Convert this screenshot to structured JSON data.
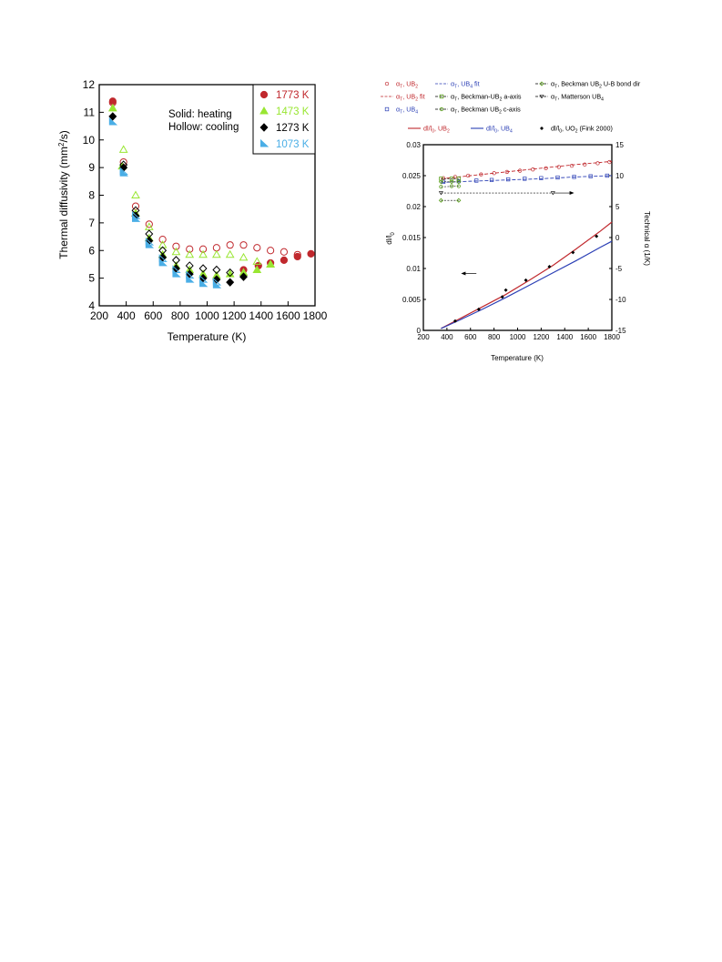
{
  "chart_data": [
    {
      "type": "scatter",
      "title": "",
      "xlabel": "Temperature (K)",
      "ylabel": "Thermal diffusivity (mm",
      "ylabel_sup": "2",
      "ylabel_end": "/s)",
      "xlim": [
        200,
        1800
      ],
      "ylim": [
        4,
        12
      ],
      "xticks": [
        "200",
        "400",
        "600",
        "800",
        "1000",
        "1200",
        "1400",
        "1600",
        "1800"
      ],
      "yticks": [
        "4",
        "5",
        "6",
        "7",
        "8",
        "9",
        "10",
        "11",
        "12"
      ],
      "annotation": [
        "Solid: heating",
        "Hollow: cooling"
      ],
      "legend_position": "top-right",
      "series": [
        {
          "name": "1773 K",
          "color": "#c0282d",
          "marker": "circle",
          "heating": [
            [
              300,
              11.4
            ],
            [
              1270,
              5.3
            ],
            [
              1380,
              5.45
            ],
            [
              1470,
              5.55
            ],
            [
              1570,
              5.65
            ],
            [
              1670,
              5.78
            ],
            [
              1770,
              5.88
            ]
          ],
          "cooling": [
            [
              300,
              11.35
            ],
            [
              380,
              9.2
            ],
            [
              470,
              7.6
            ],
            [
              570,
              6.95
            ],
            [
              670,
              6.4
            ],
            [
              770,
              6.15
            ],
            [
              870,
              6.05
            ],
            [
              970,
              6.05
            ],
            [
              1070,
              6.1
            ],
            [
              1170,
              6.2
            ],
            [
              1270,
              6.2
            ],
            [
              1370,
              6.1
            ],
            [
              1470,
              6.0
            ],
            [
              1570,
              5.95
            ],
            [
              1670,
              5.85
            ]
          ]
        },
        {
          "name": "1473 K",
          "color": "#99e632",
          "marker": "triangle",
          "heating": [
            [
              300,
              11.15
            ],
            [
              370,
              9.05
            ],
            [
              470,
              7.35
            ],
            [
              570,
              6.45
            ],
            [
              670,
              5.85
            ],
            [
              770,
              5.45
            ],
            [
              870,
              5.3
            ],
            [
              970,
              5.15
            ],
            [
              1070,
              5.1
            ],
            [
              1170,
              5.15
            ],
            [
              1270,
              5.2
            ],
            [
              1370,
              5.3
            ],
            [
              1470,
              5.5
            ]
          ],
          "cooling": [
            [
              380,
              9.65
            ],
            [
              470,
              8.0
            ],
            [
              570,
              6.85
            ],
            [
              670,
              6.2
            ],
            [
              770,
              5.95
            ],
            [
              870,
              5.85
            ],
            [
              970,
              5.85
            ],
            [
              1070,
              5.85
            ],
            [
              1170,
              5.85
            ],
            [
              1270,
              5.75
            ],
            [
              1370,
              5.6
            ],
            [
              1470,
              5.5
            ]
          ]
        },
        {
          "name": "1273 K",
          "color": "#000000",
          "marker": "diamond",
          "heating": [
            [
              300,
              10.85
            ],
            [
              380,
              9.0
            ],
            [
              470,
              7.25
            ],
            [
              570,
              6.35
            ],
            [
              670,
              5.75
            ],
            [
              770,
              5.35
            ],
            [
              870,
              5.15
            ],
            [
              970,
              5.0
            ],
            [
              1070,
              4.95
            ],
            [
              1170,
              4.85
            ],
            [
              1270,
              5.05
            ]
          ],
          "cooling": [
            [
              380,
              9.1
            ],
            [
              470,
              7.45
            ],
            [
              570,
              6.6
            ],
            [
              670,
              6.0
            ],
            [
              770,
              5.65
            ],
            [
              870,
              5.45
            ],
            [
              970,
              5.35
            ],
            [
              1070,
              5.3
            ],
            [
              1170,
              5.2
            ]
          ]
        },
        {
          "name": "1073 K",
          "color": "#4aaee6",
          "marker": "half-triangle",
          "heating": [
            [
              300,
              10.65
            ],
            [
              380,
              8.8
            ],
            [
              470,
              7.15
            ],
            [
              570,
              6.2
            ],
            [
              670,
              5.55
            ],
            [
              770,
              5.15
            ],
            [
              870,
              4.95
            ],
            [
              970,
              4.8
            ],
            [
              1070,
              4.75
            ]
          ],
          "cooling": [
            [
              380,
              8.85
            ],
            [
              470,
              7.25
            ],
            [
              570,
              6.3
            ],
            [
              670,
              5.7
            ],
            [
              770,
              5.3
            ],
            [
              870,
              5.1
            ],
            [
              970,
              4.95
            ],
            [
              1070,
              4.85
            ]
          ]
        }
      ]
    },
    {
      "type": "line",
      "title": "",
      "xlabel": "Temperature (K)",
      "ylabel": "dl/l",
      "ylabel_sub": "0",
      "y2label": "Technical α (1/K)",
      "xlim": [
        200,
        1800
      ],
      "ylim": [
        0,
        0.03
      ],
      "y2lim": [
        -15,
        15
      ],
      "xticks": [
        "200",
        "400",
        "600",
        "800",
        "1000",
        "1200",
        "1400",
        "1600",
        "1800"
      ],
      "yticks": [
        "0",
        "0.005",
        "0.01",
        "0.015",
        "0.02",
        "0.025",
        "0.03"
      ],
      "y2ticks": [
        "-15",
        "-10",
        "-5",
        "0",
        "5",
        "10",
        "15"
      ],
      "legend_position": "top",
      "legend": [
        {
          "label": "α",
          "sub": "T",
          "rest": ", UB",
          "sub2": "2",
          "color": "#c0282d",
          "marker": "circle-open",
          "line": "none"
        },
        {
          "label": "α",
          "sub": "T",
          "rest": ", UB",
          "sub2": "4",
          "suffix": " fit",
          "color": "#2b3fb5",
          "marker": "none",
          "line": "dash"
        },
        {
          "label": "α",
          "sub": "T",
          "rest": ", Beckman UB",
          "sub2": "2",
          "suffix": " U-B bond dir",
          "color": "#000000",
          "marker": "green-diamond",
          "line": "dash"
        },
        {
          "label": "α",
          "sub": "T",
          "rest": ", UB",
          "sub2": "2",
          "suffix": " fit",
          "color": "#c0282d",
          "marker": "none",
          "line": "dash"
        },
        {
          "label": "α",
          "sub": "T",
          "rest": ", Beckman-UB",
          "sub2": "2",
          "suffix": " a-axis",
          "color": "#000000",
          "marker": "green-square",
          "line": "dash"
        },
        {
          "label": "α",
          "sub": "T",
          "rest": ", Matterson UB",
          "sub2": "4",
          "color": "#000000",
          "marker": "triangle-down-open",
          "line": "dash"
        },
        {
          "label": "α",
          "sub": "T",
          "rest": ", UB",
          "sub2": "4",
          "color": "#2b3fb5",
          "marker": "square-open",
          "line": "none"
        },
        {
          "label": "α",
          "sub": "T",
          "rest": ", Beckman UB",
          "sub2": "2",
          "suffix": " c-axis",
          "color": "#000000",
          "marker": "green-circle",
          "line": "dash"
        },
        {
          "label": "dl/l",
          "sub": "0",
          "rest": ", UB",
          "sub2": "2",
          "color": "#c0282d",
          "marker": "none",
          "line": "solid"
        },
        {
          "label": "dl/l",
          "sub": "0",
          "rest": ", UB",
          "sub2": "4",
          "color": "#2b3fb5",
          "marker": "none",
          "line": "solid"
        },
        {
          "label": "dl/l",
          "sub": "0",
          "rest": ", UO",
          "sub2": "2",
          "suffix": " (Fink 2000)",
          "color": "#000000",
          "marker": "diamond",
          "line": "none"
        }
      ],
      "series": {
        "dl_UB2": {
          "color": "#c0282d",
          "x": [
            350,
            500,
            700,
            900,
            1100,
            1300,
            1500,
            1700,
            1800
          ],
          "y": [
            0.0003,
            0.0018,
            0.0038,
            0.0058,
            0.0081,
            0.0105,
            0.0132,
            0.016,
            0.0175
          ]
        },
        "dl_UB4": {
          "color": "#2b3fb5",
          "x": [
            350,
            500,
            700,
            900,
            1100,
            1300,
            1500,
            1700,
            1800
          ],
          "y": [
            0.0003,
            0.0016,
            0.0034,
            0.0053,
            0.0073,
            0.0093,
            0.0113,
            0.0134,
            0.0144
          ]
        },
        "dl_UO2_Fink": {
          "color": "#000000",
          "x": [
            470,
            670,
            870,
            900,
            1070,
            1270,
            1470,
            1670
          ],
          "y": [
            0.0015,
            0.0034,
            0.0054,
            0.0065,
            0.0081,
            0.0103,
            0.0126,
            0.0152
          ]
        },
        "alpha_UB2_fit": {
          "color": "#c0282d",
          "x": [
            350,
            600,
            900,
            1200,
            1500,
            1800
          ],
          "y2": [
            9.5,
            10.0,
            10.6,
            11.2,
            11.8,
            12.3
          ]
        },
        "alpha_UB2": {
          "color": "#c0282d",
          "x": [
            370,
            470,
            580,
            690,
            800,
            910,
            1020,
            1130,
            1240,
            1350,
            1460,
            1570,
            1680,
            1780
          ],
          "y2": [
            9.6,
            9.8,
            10.0,
            10.2,
            10.4,
            10.6,
            10.8,
            11.0,
            11.2,
            11.4,
            11.6,
            11.8,
            12.0,
            12.2
          ]
        },
        "alpha_UB4_fit": {
          "color": "#2b3fb5",
          "x": [
            350,
            600,
            900,
            1200,
            1500,
            1800
          ],
          "y2": [
            8.9,
            9.1,
            9.3,
            9.5,
            9.8,
            10.0
          ]
        },
        "alpha_UB4": {
          "color": "#2b3fb5",
          "x": [
            370,
            500,
            650,
            780,
            920,
            1060,
            1200,
            1340,
            1480,
            1620,
            1760
          ],
          "y2": [
            9.0,
            9.1,
            9.2,
            9.3,
            9.4,
            9.5,
            9.6,
            9.7,
            9.8,
            9.9,
            10.0
          ]
        },
        "alpha_Beckman_a": {
          "color": "#000000",
          "x": [
            350,
            500
          ],
          "y2": [
            9.5,
            9.5
          ]
        },
        "alpha_Beckman_Ubond": {
          "color": "#000000",
          "x": [
            350,
            500
          ],
          "y2": [
            9.0,
            9.0
          ]
        },
        "alpha_Beckman_c": {
          "color": "#000000",
          "x": [
            350,
            500
          ],
          "y2": [
            8.2,
            8.3
          ]
        },
        "alpha_Matterson_UB4": {
          "color": "#000000",
          "x": [
            350,
            1300
          ],
          "y2": [
            7.2,
            7.2
          ]
        },
        "alpha_Beckman_low": {
          "color": "#000000",
          "x": [
            350,
            500
          ],
          "y2": [
            6.0,
            6.0
          ]
        }
      },
      "arrows": [
        {
          "direction": "left",
          "axis": "primary",
          "x": [
            520,
            650
          ],
          "y": 0.0092
        },
        {
          "direction": "right",
          "axis": "secondary",
          "x": [
            1310,
            1480
          ],
          "y2": 7.2
        }
      ]
    }
  ]
}
